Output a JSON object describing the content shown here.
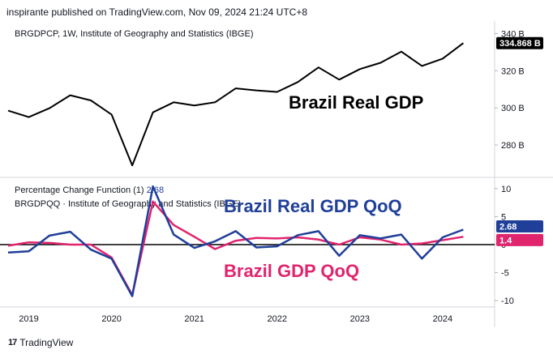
{
  "header": "inspirante published on TradingView.com, Nov 09, 2024 21:24 UTC+8",
  "footer": {
    "logo_icon": "tradingview-logo-icon",
    "brand": "TradingView",
    "logo_mark": "17"
  },
  "colors": {
    "gdp_line": "#000000",
    "qoq_real": "#1f3f99",
    "qoq_gdp": "#e0246e",
    "grid": "#e0e3eb",
    "zero": "#000000"
  },
  "chart_data": [
    {
      "type": "line",
      "pane": "top",
      "title": "BRGDPCP, 1W, Institute of Geography and Statistics (IBGE)",
      "annotation": "Brazil Real GDP",
      "last_value_label": "334.868 B",
      "y_ticks": [
        "340 B",
        "320 B",
        "300 B",
        "280 B"
      ],
      "y_tick_values": [
        340,
        320,
        300,
        280
      ],
      "ylim": [
        263,
        345
      ],
      "x": [
        2018.75,
        2019.0,
        2019.25,
        2019.5,
        2019.75,
        2020.0,
        2020.25,
        2020.5,
        2020.75,
        2021.0,
        2021.25,
        2021.5,
        2021.75,
        2022.0,
        2022.25,
        2022.5,
        2022.75,
        2023.0,
        2023.25,
        2023.5,
        2023.75,
        2024.0,
        2024.25
      ],
      "values": [
        298.5,
        295.0,
        299.8,
        306.8,
        304.0,
        296.4,
        269.0,
        297.6,
        303.0,
        301.3,
        303.0,
        310.5,
        309.4,
        308.6,
        313.9,
        321.8,
        315.2,
        320.9,
        324.3,
        330.3,
        322.6,
        326.5,
        334.868
      ]
    },
    {
      "type": "line",
      "pane": "bottom",
      "title": "Percentage Change Function (1)",
      "title_value": "2.68",
      "subtitle": "BRGDPQQ · Institute of Geography and Statistics (IBGE)",
      "annotations": [
        "Brazil Real GDP QoQ",
        "Brazil GDP QoQ"
      ],
      "x_ticks": [
        "2019",
        "2020",
        "2021",
        "2022",
        "2023",
        "2024"
      ],
      "x_tick_values": [
        2019,
        2020,
        2021,
        2022,
        2023,
        2024
      ],
      "xlim": [
        2018.75,
        2024.53
      ],
      "y_ticks": [
        "10",
        "5",
        "0",
        "-5",
        "-10"
      ],
      "y_tick_values": [
        10,
        5,
        0,
        -5,
        -10
      ],
      "ylim": [
        -11,
        11
      ],
      "series": [
        {
          "name": "Brazil Real GDP QoQ",
          "color_key": "qoq_real",
          "last_value_label": "2.68",
          "x": [
            2018.75,
            2019.0,
            2019.25,
            2019.5,
            2019.75,
            2020.0,
            2020.25,
            2020.5,
            2020.75,
            2021.0,
            2021.25,
            2021.5,
            2021.75,
            2022.0,
            2022.25,
            2022.5,
            2022.75,
            2023.0,
            2023.25,
            2023.5,
            2023.75,
            2024.0,
            2024.25
          ],
          "values": [
            -1.4,
            -1.2,
            1.6,
            2.3,
            -0.9,
            -2.5,
            -9.2,
            10.4,
            1.8,
            -0.6,
            0.6,
            2.4,
            -0.5,
            -0.3,
            1.7,
            2.4,
            -2.0,
            1.7,
            1.1,
            1.8,
            -2.5,
            1.3,
            2.68
          ]
        },
        {
          "name": "Brazil GDP QoQ",
          "color_key": "qoq_gdp",
          "last_value_label": "1.4",
          "x": [
            2018.75,
            2019.0,
            2019.25,
            2019.5,
            2019.75,
            2020.0,
            2020.25,
            2020.5,
            2020.75,
            2021.0,
            2021.25,
            2021.5,
            2021.75,
            2022.0,
            2022.25,
            2022.5,
            2022.75,
            2023.0,
            2023.25,
            2023.5,
            2023.75,
            2024.0,
            2024.25
          ],
          "values": [
            -0.2,
            0.4,
            0.3,
            0.0,
            0.0,
            -2.3,
            -9.0,
            7.7,
            3.5,
            1.4,
            -0.8,
            0.7,
            1.2,
            1.1,
            1.3,
            0.9,
            0.0,
            1.3,
            0.9,
            0.0,
            0.2,
            0.8,
            1.4
          ]
        }
      ]
    }
  ]
}
